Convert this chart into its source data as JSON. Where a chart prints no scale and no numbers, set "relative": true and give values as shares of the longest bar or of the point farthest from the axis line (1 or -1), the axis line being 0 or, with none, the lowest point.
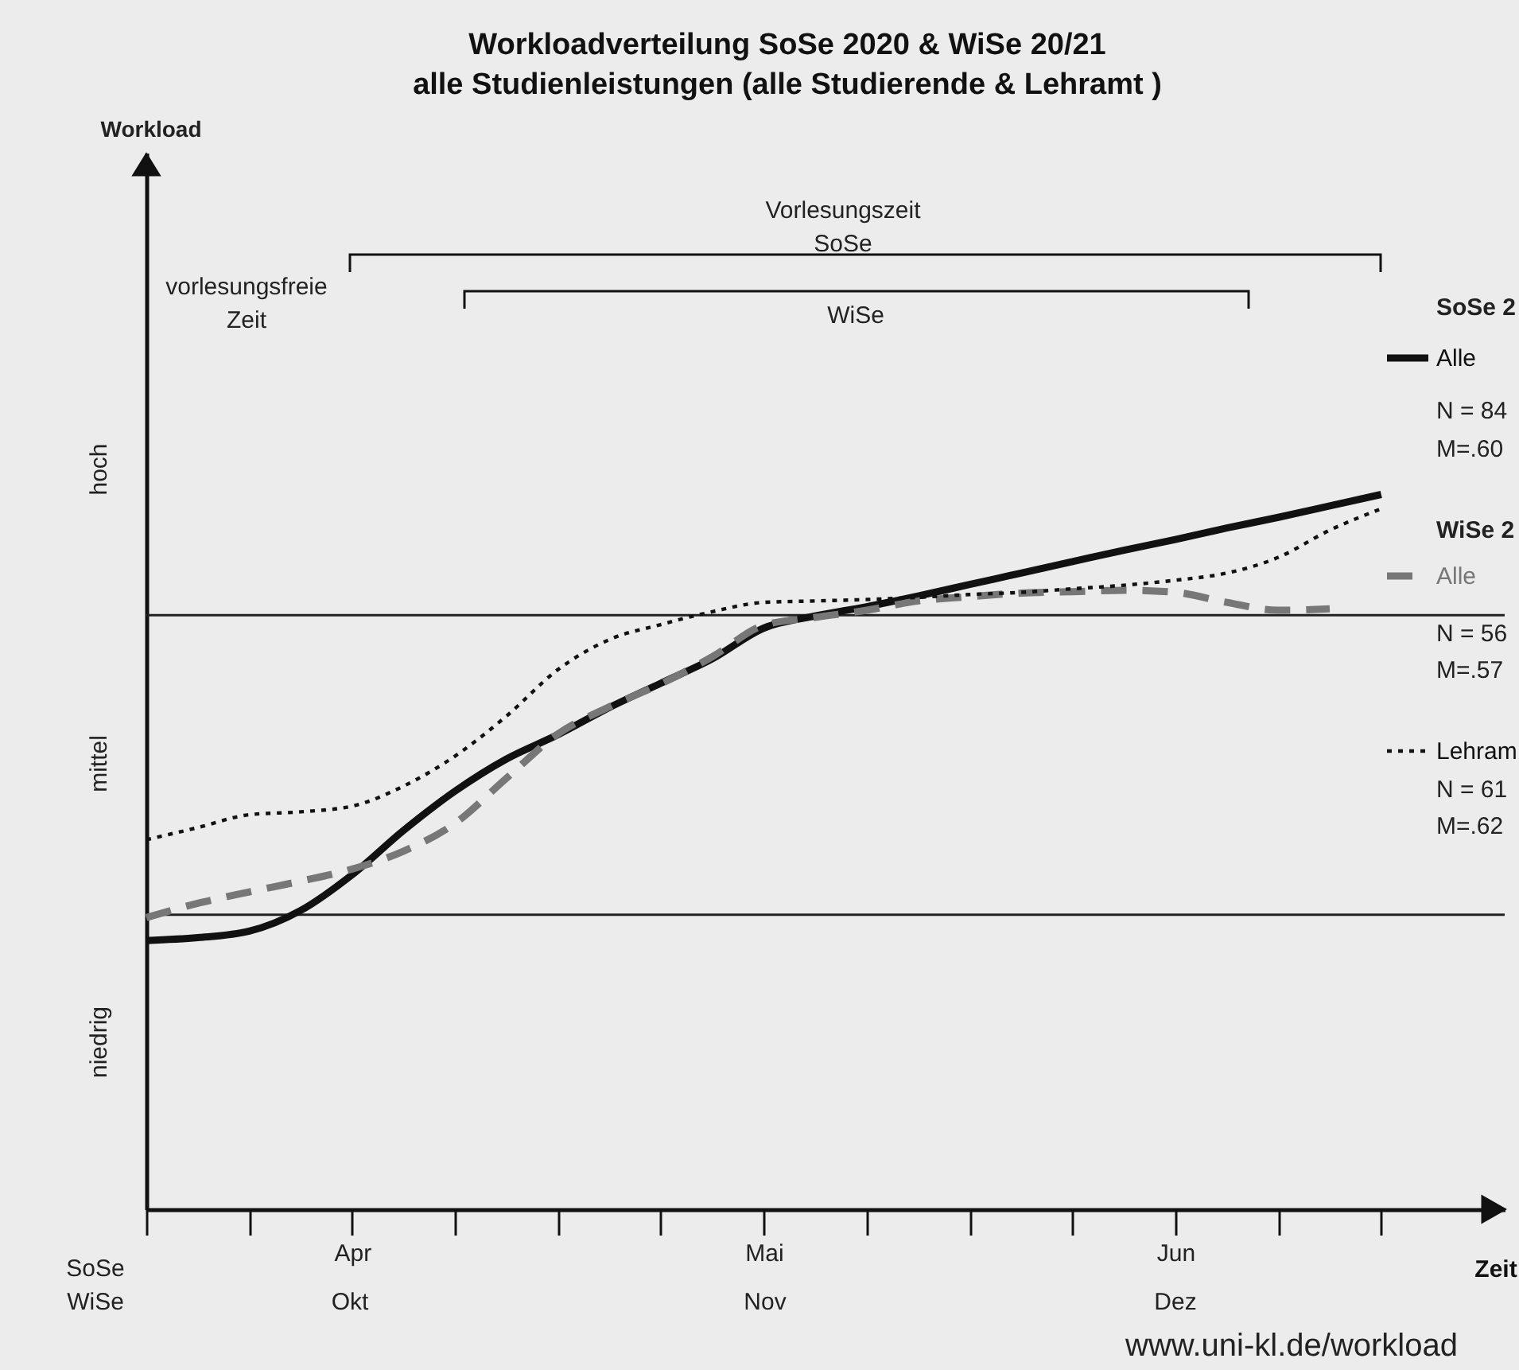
{
  "chart_data": {
    "type": "line",
    "title": "Workloadverteilung SoSe 2020 & WiSe 20/21",
    "subtitle": "alle Studienleistungen (alle Studierende & Lehramt )",
    "xlabel": "Zeit",
    "relative": true,
    "legend": "right",
    "categories": [
      null,
      null,
      null,
      null,
      "Apr",
      null,
      null,
      null,
      null,
      null,
      null,
      null,
      "Mai",
      null,
      null,
      null,
      null,
      null,
      null,
      null,
      "Jun",
      null,
      null,
      null,
      null
    ],
    "series": [
      {
        "name": "Alle",
        "color": "#111111",
        "line_style": "solid",
        "values": [
          0.376,
          0.38,
          0.389,
          0.418,
          0.468,
          0.53,
          0.585,
          0.63,
          0.664,
          0.702,
          0.736,
          0.77,
          0.813,
          0.83,
          0.843,
          0.858,
          0.874,
          0.89,
          0.906,
          0.922,
          0.937,
          0.953,
          0.968,
          0.984,
          1.0
        ]
      },
      {
        "name": "Alle",
        "color": "#777777",
        "line_style": "dashed",
        "values": [
          0.408,
          0.428,
          0.444,
          0.459,
          0.476,
          0.501,
          0.54,
          0.603,
          0.665,
          0.703,
          0.735,
          0.773,
          0.817,
          0.828,
          0.838,
          0.851,
          0.857,
          0.862,
          0.864,
          0.866,
          0.863,
          0.849,
          0.838,
          0.84,
          null
        ]
      },
      {
        "name": "Lehram",
        "color": "#111111",
        "line_style": "dotted",
        "values": [
          0.517,
          0.534,
          0.552,
          0.556,
          0.564,
          0.592,
          0.634,
          0.69,
          0.755,
          0.797,
          0.818,
          0.836,
          0.849,
          0.851,
          0.853,
          0.856,
          0.86,
          0.863,
          0.868,
          0.873,
          0.88,
          0.89,
          0.912,
          0.95,
          0.98
        ]
      }
    ],
    "ref_lines": [
      {
        "axis": "y",
        "value": 0.831,
        "color": "#222222"
      },
      {
        "axis": "y",
        "value": 0.412,
        "color": "#222222"
      }
    ],
    "annotations": [
      "niedrig",
      "mittel",
      "hoch",
      "SoSe",
      "WiSe",
      "Okt",
      "Nov",
      "Dez",
      "SoSe 2",
      "N = 84",
      "M=.60",
      "WiSe 2",
      "N = 56",
      "M=.57",
      "N = 61",
      "M=.62",
      "www.uni-kl.de/workload",
      "vorlesungsfreie Zeit",
      "Vorlesungszeit SoSe",
      "WiSe",
      "Workload"
    ]
  }
}
